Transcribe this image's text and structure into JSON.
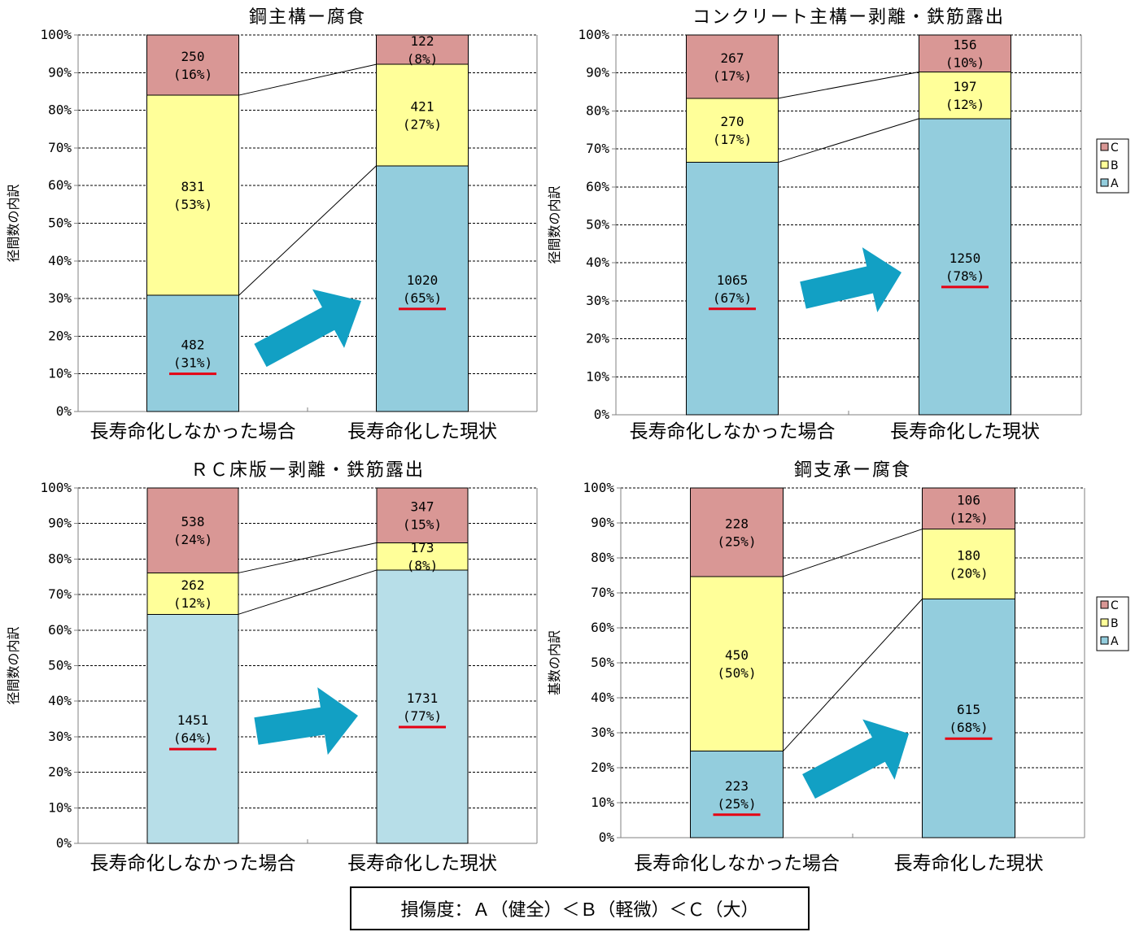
{
  "chart_data": [
    {
      "type": "bar",
      "stacked": "percent",
      "title": "鋼主構ー腐食",
      "ylabel": "径間数の内訳",
      "categories": [
        "長寿命化しなかった場合",
        "長寿命化した現状"
      ],
      "ylim": [
        0,
        100
      ],
      "ytick_labels": [
        "0%",
        "10%",
        "20%",
        "30%",
        "40%",
        "50%",
        "60%",
        "70%",
        "80%",
        "90%",
        "100%"
      ],
      "grid": true,
      "series_lines": true,
      "series": [
        {
          "values": [
            482,
            1020
          ],
          "percent_labels": [
            "(31%)",
            "(65%)"
          ],
          "color": "#93CDDD"
        },
        {
          "values": [
            831,
            421
          ],
          "percent_labels": [
            "(53%)",
            "(27%)"
          ],
          "color": "#FFFF99"
        },
        {
          "values": [
            250,
            122
          ],
          "percent_labels": [
            "(16%)",
            "(8%)"
          ],
          "color": "#D99795"
        }
      ],
      "underlined_series": 0,
      "underline_color": "#E60012",
      "arrow_color": "#12A0C4"
    },
    {
      "type": "bar",
      "stacked": "percent",
      "title": "コンクリート主構ー剥離・鉄筋露出",
      "ylabel": "径間数の内訳",
      "categories": [
        "長寿命化しなかった場合",
        "長寿命化した現状"
      ],
      "ylim": [
        0,
        100
      ],
      "ytick_labels": [
        "0%",
        "10%",
        "20%",
        "30%",
        "40%",
        "50%",
        "60%",
        "70%",
        "80%",
        "90%",
        "100%"
      ],
      "grid": true,
      "series_lines": true,
      "legend": "right",
      "series": [
        {
          "name": "A",
          "values": [
            1065,
            1250
          ],
          "percent_labels": [
            "(67%)",
            "(78%)"
          ],
          "color": "#93CDDD"
        },
        {
          "name": "B",
          "values": [
            270,
            197
          ],
          "percent_labels": [
            "(17%)",
            "(12%)"
          ],
          "color": "#FFFF99"
        },
        {
          "name": "C",
          "values": [
            267,
            156
          ],
          "percent_labels": [
            "(17%)",
            "(10%)"
          ],
          "color": "#D99795"
        }
      ],
      "underlined_series": 0,
      "underline_color": "#E60012",
      "arrow_color": "#12A0C4"
    },
    {
      "type": "bar",
      "stacked": "percent",
      "title": "ＲＣ床版ー剥離・鉄筋露出",
      "ylabel": "径間数の内訳",
      "categories": [
        "長寿命化しなかった場合",
        "長寿命化した現状"
      ],
      "ylim": [
        0,
        100
      ],
      "ytick_labels": [
        "0%",
        "10%",
        "20%",
        "30%",
        "40%",
        "50%",
        "60%",
        "70%",
        "80%",
        "90%",
        "100%"
      ],
      "grid": true,
      "series_lines": true,
      "series": [
        {
          "values": [
            1451,
            1731
          ],
          "percent_labels": [
            "(64%)",
            "(77%)"
          ],
          "color": "#B7DEE8"
        },
        {
          "values": [
            262,
            173
          ],
          "percent_labels": [
            "(12%)",
            "(8%)"
          ],
          "color": "#FFFF99"
        },
        {
          "values": [
            538,
            347
          ],
          "percent_labels": [
            "(24%)",
            "(15%)"
          ],
          "color": "#D99795"
        }
      ],
      "underlined_series": 0,
      "underline_color": "#E60012",
      "arrow_color": "#12A0C4"
    },
    {
      "type": "bar",
      "stacked": "percent",
      "title": "鋼支承ー腐食",
      "ylabel": "基数の内訳",
      "categories": [
        "長寿命化しなかった場合",
        "長寿命化した現状"
      ],
      "ylim": [
        0,
        100
      ],
      "ytick_labels": [
        "0%",
        "10%",
        "20%",
        "30%",
        "40%",
        "50%",
        "60%",
        "70%",
        "80%",
        "90%",
        "100%"
      ],
      "grid": true,
      "series_lines": true,
      "legend": "right",
      "series": [
        {
          "name": "A",
          "values": [
            223,
            615
          ],
          "percent_labels": [
            "(25%)",
            "(68%)"
          ],
          "color": "#93CDDD"
        },
        {
          "name": "B",
          "values": [
            450,
            180
          ],
          "percent_labels": [
            "(50%)",
            "(20%)"
          ],
          "color": "#FFFF99"
        },
        {
          "name": "C",
          "values": [
            228,
            106
          ],
          "percent_labels": [
            "(25%)",
            "(12%)"
          ],
          "color": "#D99795"
        }
      ],
      "underlined_series": 0,
      "underline_color": "#E60012",
      "arrow_color": "#12A0C4"
    }
  ],
  "note": "損傷度：Ａ（健全）＜Ｂ（軽微）＜Ｃ（大）"
}
